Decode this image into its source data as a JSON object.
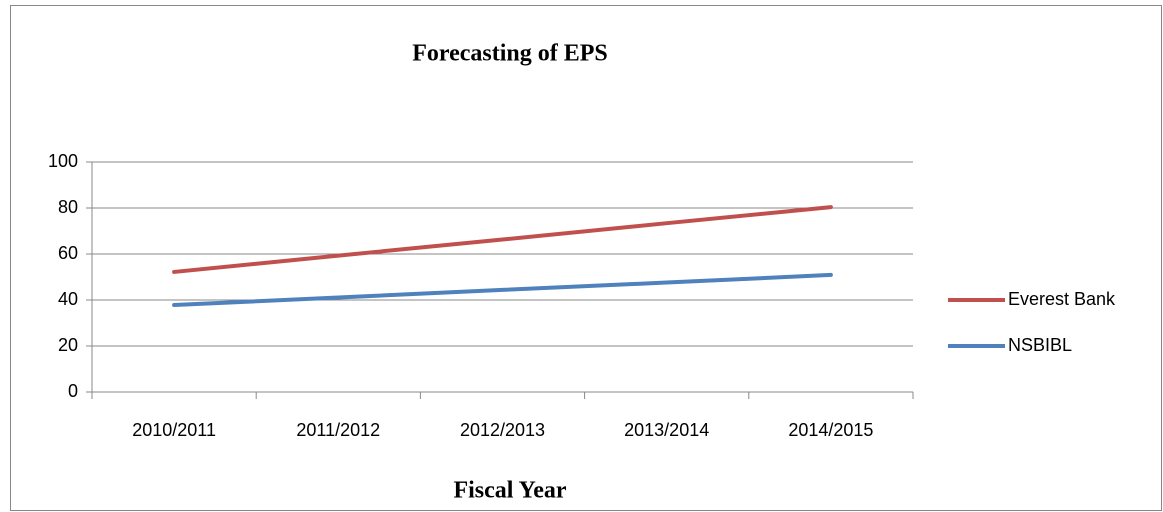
{
  "chart_data": {
    "type": "line",
    "title": "Forecasting of EPS",
    "x_label": "Fiscal Year",
    "categories": [
      "2010/2011",
      "2011/2012",
      "2012/2013",
      "2013/2014",
      "2014/2015"
    ],
    "series": [
      {
        "name": "Everest Bank",
        "color": "#c0504d",
        "values": [
          52.2,
          59.3,
          66.3,
          73.4,
          80.4
        ]
      },
      {
        "name": "NSBIBL",
        "color": "#4f81bd",
        "values": [
          37.8,
          41.1,
          44.4,
          47.6,
          50.9
        ]
      }
    ],
    "ylim": [
      0,
      100
    ],
    "yticks": [
      0,
      20,
      40,
      60,
      80,
      100
    ],
    "grid": true,
    "legend": "right"
  }
}
